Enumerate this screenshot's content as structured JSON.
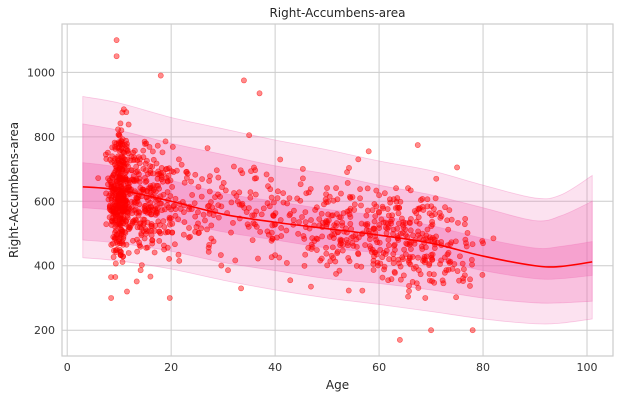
{
  "chart_data": {
    "type": "scatter",
    "title": "Right-Accumbens-area",
    "xlabel": "Age",
    "ylabel": "Right-Accumbens-area",
    "xlim": [
      -1,
      105
    ],
    "ylim": [
      120,
      1150
    ],
    "xticks": [
      0,
      20,
      40,
      60,
      80,
      100
    ],
    "yticks": [
      200,
      400,
      600,
      800,
      1000
    ],
    "grid": true,
    "colors": {
      "points": "#ff0000",
      "fit_line": "#ff0000",
      "bands": "#f06cb4",
      "grid": "#cccccc",
      "axes": "#cccccc"
    },
    "fit_line": {
      "x": [
        3,
        10,
        20,
        30,
        40,
        50,
        60,
        70,
        80,
        90,
        95,
        101
      ],
      "y": [
        645,
        635,
        600,
        560,
        535,
        515,
        495,
        470,
        430,
        400,
        398,
        412
      ]
    },
    "bands": [
      {
        "x": [
          3,
          10,
          20,
          30,
          40,
          50,
          60,
          70,
          80,
          90,
          95,
          101
        ],
        "lower": [
          425,
          415,
          390,
          355,
          325,
          300,
          280,
          258,
          235,
          220,
          222,
          235
        ],
        "upper": [
          925,
          905,
          860,
          825,
          790,
          760,
          725,
          695,
          650,
          610,
          620,
          680
        ]
      },
      {
        "x": [
          3,
          10,
          20,
          30,
          40,
          50,
          60,
          70,
          80,
          90,
          95,
          101
        ],
        "lower": [
          480,
          470,
          445,
          410,
          385,
          360,
          345,
          325,
          300,
          285,
          285,
          290
        ],
        "upper": [
          840,
          820,
          780,
          745,
          710,
          685,
          650,
          620,
          580,
          540,
          555,
          600
        ]
      },
      {
        "x": [
          3,
          10,
          20,
          30,
          40,
          50,
          60,
          70,
          80,
          90,
          95,
          101
        ],
        "lower": [
          580,
          570,
          540,
          505,
          480,
          455,
          440,
          420,
          385,
          360,
          360,
          370
        ],
        "upper": [
          720,
          705,
          665,
          625,
          600,
          575,
          555,
          525,
          485,
          455,
          460,
          475
        ]
      }
    ],
    "points": {
      "clusters": [
        {
          "cx": 10,
          "cy": 620,
          "sx": 1.0,
          "sy": 110,
          "n": 320
        },
        {
          "cx": 12,
          "cy": 610,
          "sx": 1.5,
          "sy": 90,
          "n": 90
        },
        {
          "cx": 16,
          "cy": 600,
          "sx": 2.0,
          "sy": 85,
          "n": 160
        },
        {
          "cx": 21,
          "cy": 580,
          "sx": 2.5,
          "sy": 75,
          "n": 60
        },
        {
          "cx": 28,
          "cy": 570,
          "sx": 4.0,
          "sy": 80,
          "n": 70
        },
        {
          "cx": 38,
          "cy": 555,
          "sx": 4.0,
          "sy": 80,
          "n": 60
        },
        {
          "cx": 50,
          "cy": 520,
          "sx": 4.5,
          "sy": 75,
          "n": 110
        },
        {
          "cx": 60,
          "cy": 500,
          "sx": 4.5,
          "sy": 80,
          "n": 140
        },
        {
          "cx": 68,
          "cy": 475,
          "sx": 4.0,
          "sy": 80,
          "n": 120
        },
        {
          "cx": 75,
          "cy": 455,
          "sx": 3.0,
          "sy": 75,
          "n": 45
        }
      ],
      "outliers": [
        {
          "x": 9.5,
          "y": 1100
        },
        {
          "x": 9.5,
          "y": 1050
        },
        {
          "x": 18,
          "y": 990
        },
        {
          "x": 34,
          "y": 975
        },
        {
          "x": 37,
          "y": 935
        },
        {
          "x": 11.5,
          "y": 320
        },
        {
          "x": 64,
          "y": 170
        },
        {
          "x": 70,
          "y": 200
        },
        {
          "x": 78,
          "y": 200
        },
        {
          "x": 35,
          "y": 805
        },
        {
          "x": 58,
          "y": 755
        },
        {
          "x": 56,
          "y": 730
        },
        {
          "x": 82,
          "y": 485
        },
        {
          "x": 80,
          "y": 470
        },
        {
          "x": 27,
          "y": 765
        },
        {
          "x": 46,
          "y": 625
        },
        {
          "x": 75,
          "y": 705
        },
        {
          "x": 71,
          "y": 670
        }
      ]
    }
  }
}
